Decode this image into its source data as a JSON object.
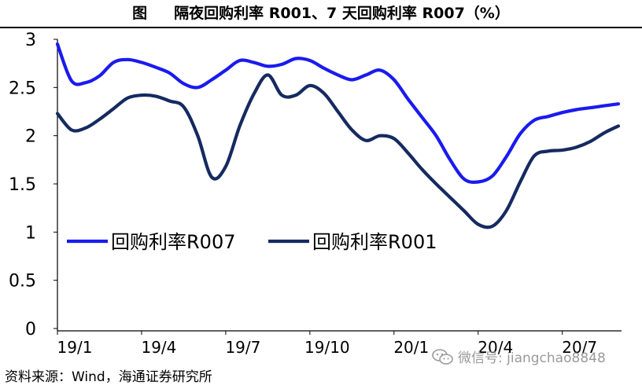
{
  "header": {
    "fig_label": "图",
    "title": "隔夜回购利率 R001、7 天回购利率 R007（%）"
  },
  "chart_data": {
    "type": "line",
    "x": [
      0,
      0.5,
      1,
      1.5,
      2,
      2.5,
      3,
      3.5,
      4,
      4.5,
      5,
      5.5,
      6,
      6.5,
      7,
      7.5,
      8,
      8.5,
      9,
      9.5,
      10,
      10.5,
      11,
      11.5,
      12,
      12.5,
      13,
      13.5,
      14,
      14.5,
      15,
      15.5,
      16,
      16.5,
      17,
      17.5,
      18,
      18.5,
      19,
      19.5,
      20
    ],
    "xticks": [
      {
        "x": 0,
        "label": "19/1"
      },
      {
        "x": 3,
        "label": "19/4"
      },
      {
        "x": 6,
        "label": "19/7"
      },
      {
        "x": 9,
        "label": "19/10"
      },
      {
        "x": 12,
        "label": "20/1"
      },
      {
        "x": 15,
        "label": "20/4"
      },
      {
        "x": 18,
        "label": "20/7"
      }
    ],
    "series": [
      {
        "name": "回购利率R007",
        "color": "#1a1aee",
        "values": [
          2.95,
          2.57,
          2.55,
          2.62,
          2.76,
          2.79,
          2.76,
          2.71,
          2.65,
          2.54,
          2.5,
          2.58,
          2.68,
          2.78,
          2.76,
          2.72,
          2.74,
          2.8,
          2.78,
          2.7,
          2.63,
          2.58,
          2.63,
          2.68,
          2.58,
          2.38,
          2.19,
          2.0,
          1.75,
          1.55,
          1.52,
          1.58,
          1.78,
          2.02,
          2.16,
          2.2,
          2.24,
          2.27,
          2.29,
          2.31,
          2.33
        ]
      },
      {
        "name": "回购利率R001",
        "color": "#152a60",
        "values": [
          2.23,
          2.06,
          2.08,
          2.17,
          2.28,
          2.39,
          2.42,
          2.41,
          2.36,
          2.3,
          2.0,
          1.57,
          1.68,
          2.1,
          2.43,
          2.63,
          2.42,
          2.42,
          2.52,
          2.44,
          2.25,
          2.06,
          1.95,
          2.0,
          1.97,
          1.82,
          1.65,
          1.5,
          1.36,
          1.22,
          1.08,
          1.06,
          1.22,
          1.52,
          1.79,
          1.84,
          1.85,
          1.88,
          1.94,
          2.03,
          2.1
        ]
      }
    ],
    "ylim": [
      0,
      3
    ],
    "yticks": [
      "0",
      "0.5",
      "1",
      "1.5",
      "2",
      "2.5",
      "3"
    ],
    "xlabel": "",
    "ylabel": "",
    "legend": {
      "position": "center-left",
      "labels": [
        "回购利率R007",
        "回购利率R001"
      ]
    }
  },
  "footer": {
    "source": "资料来源：Wind，海通证券研究所",
    "watermark": "微信号: jiangchao8848"
  }
}
